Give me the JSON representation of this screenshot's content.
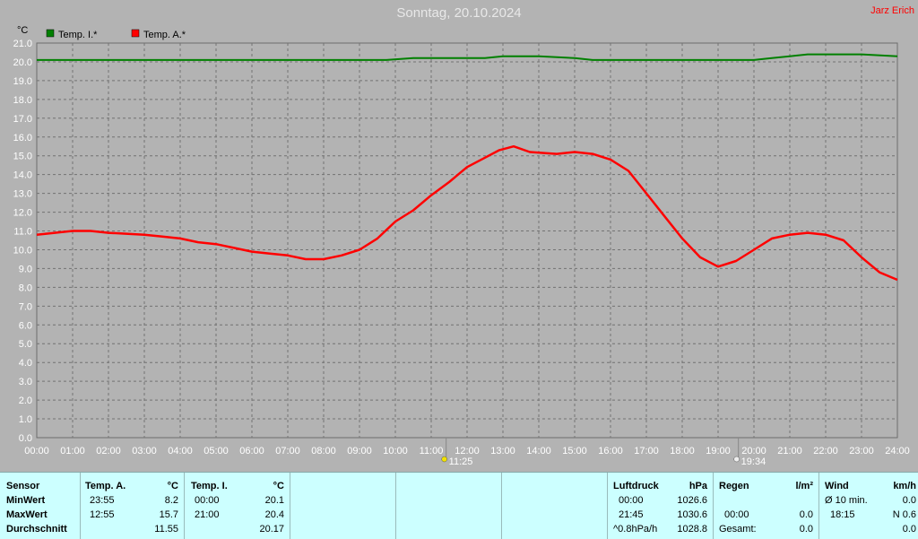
{
  "header": {
    "title": "Sonntag, 20.10.2024",
    "author": "Jarz Erich"
  },
  "chart_data": {
    "type": "line",
    "title": "Sonntag, 20.10.2024",
    "ylabel": "°C",
    "ylim": [
      0,
      21
    ],
    "xlim": [
      0,
      24
    ],
    "grid": true,
    "legend_position": "top-left",
    "x_ticks": [
      "00:00",
      "01:00",
      "02:00",
      "03:00",
      "04:00",
      "05:00",
      "06:00",
      "07:00",
      "08:00",
      "09:00",
      "10:00",
      "11:00",
      "12:00",
      "13:00",
      "14:00",
      "15:00",
      "16:00",
      "17:00",
      "18:00",
      "19:00",
      "20:00",
      "21:00",
      "22:00",
      "23:00",
      "24:00"
    ],
    "y_ticks": [
      "0.0",
      "1.0",
      "2.0",
      "3.0",
      "4.0",
      "5.0",
      "6.0",
      "7.0",
      "8.0",
      "9.0",
      "10.0",
      "11.0",
      "12.0",
      "13.0",
      "14.0",
      "15.0",
      "16.0",
      "17.0",
      "18.0",
      "19.0",
      "20.0",
      "21.0"
    ],
    "series": [
      {
        "name": "Temp. I.*",
        "color": "#008000",
        "x": [
          0,
          1,
          2,
          3,
          4,
          5,
          6,
          7,
          8,
          9,
          9.75,
          10.5,
          11,
          12,
          12.5,
          13,
          14,
          15,
          15.5,
          16,
          17,
          18,
          19,
          20,
          20.5,
          21,
          21.5,
          22,
          23,
          24
        ],
        "y": [
          20.1,
          20.1,
          20.1,
          20.1,
          20.1,
          20.1,
          20.1,
          20.1,
          20.1,
          20.1,
          20.1,
          20.2,
          20.2,
          20.2,
          20.2,
          20.3,
          20.3,
          20.2,
          20.1,
          20.1,
          20.1,
          20.1,
          20.1,
          20.1,
          20.2,
          20.3,
          20.4,
          20.4,
          20.4,
          20.3
        ]
      },
      {
        "name": "Temp. A.*",
        "color": "#ff0000",
        "x": [
          0,
          0.5,
          1,
          1.5,
          2,
          3,
          3.5,
          4,
          4.5,
          5,
          5.5,
          6,
          6.5,
          7,
          7.5,
          8,
          8.5,
          9,
          9.5,
          10,
          10.5,
          11,
          11.5,
          12,
          12.5,
          12.9,
          13.3,
          13.75,
          14.5,
          15,
          15.5,
          16,
          16.5,
          17,
          17.5,
          18,
          18.5,
          19,
          19.5,
          20,
          20.5,
          21,
          21.5,
          22,
          22.5,
          23,
          23.5,
          24
        ],
        "y": [
          10.8,
          10.9,
          11.0,
          11.0,
          10.9,
          10.8,
          10.7,
          10.6,
          10.4,
          10.3,
          10.1,
          9.9,
          9.8,
          9.7,
          9.5,
          9.5,
          9.7,
          10.0,
          10.6,
          11.5,
          12.1,
          12.9,
          13.6,
          14.4,
          14.9,
          15.3,
          15.5,
          15.2,
          15.1,
          15.2,
          15.1,
          14.8,
          14.2,
          13.0,
          11.8,
          10.6,
          9.6,
          9.1,
          9.4,
          10.0,
          10.6,
          10.8,
          10.9,
          10.8,
          10.5,
          9.6,
          8.8,
          8.4
        ]
      }
    ],
    "markers": [
      {
        "label": "11:25",
        "x": 11.4167
      },
      {
        "label": "19:34",
        "x": 19.5667
      }
    ]
  },
  "stats": {
    "row_labels": [
      "Sensor",
      "MinWert",
      "MaxWert",
      "Durchschnitt"
    ],
    "temp_a": {
      "header": "Temp. A.",
      "unit": "°C",
      "min_time": "23:55",
      "min_val": "8.2",
      "max_time": "12:55",
      "max_val": "15.7",
      "avg": "11.55"
    },
    "temp_i": {
      "header": "Temp. I.",
      "unit": "°C",
      "min_time": "00:00",
      "min_val": "20.1",
      "max_time": "21:00",
      "max_val": "20.4",
      "avg": "20.17"
    },
    "pressure": {
      "header": "Luftdruck",
      "unit": "hPa",
      "r1_label": "00:00",
      "r1_val": "1026.6",
      "r2_label": "21:45",
      "r2_val": "1030.6",
      "r3_label": "^0.8hPa/h",
      "r3_val": "1028.8"
    },
    "rain": {
      "header": "Regen",
      "unit": "l/m²",
      "r2_label": "00:00",
      "r2_val": "0.0",
      "r3_label": "Gesamt:",
      "r3_val": "0.0"
    },
    "wind": {
      "header": "Wind",
      "unit": "km/h",
      "r1_label": "Ø 10 min.",
      "r1_val": "0.0",
      "r2_label": "18:15",
      "r2_val": "N 0.6",
      "r3_val": "0.0"
    }
  }
}
